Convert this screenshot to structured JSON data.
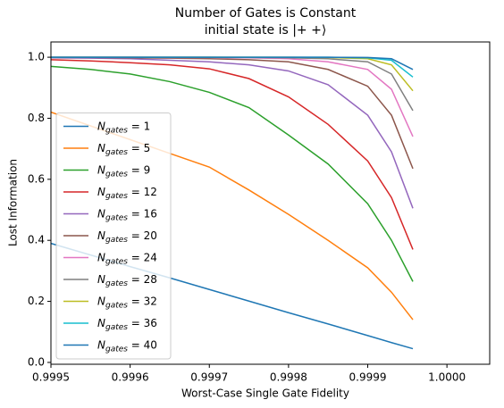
{
  "chart_data": {
    "type": "line",
    "title": "Number of Gates is Constant",
    "subtitle": "initial state is |+ +⟩",
    "x_label": "Worst-Case Single Gate Fidelity",
    "y_label": "Lost Information",
    "x": [
      0.9995,
      0.99955,
      0.9996,
      0.99965,
      0.9997,
      0.99975,
      0.9998,
      0.99985,
      0.9999,
      0.99993,
      0.999957
    ],
    "series": [
      {
        "name": "Ngates = 1",
        "color": "#1f77b4",
        "values": [
          0.39,
          0.352,
          0.314,
          0.277,
          0.239,
          0.201,
          0.163,
          0.126,
          0.088,
          0.065,
          0.045
        ]
      },
      {
        "name": "Ngates = 5",
        "color": "#ff7f0e",
        "values": [
          0.82,
          0.775,
          0.73,
          0.685,
          0.64,
          0.565,
          0.485,
          0.4,
          0.31,
          0.23,
          0.14
        ]
      },
      {
        "name": "Ngates = 9",
        "color": "#2ca02c",
        "values": [
          0.97,
          0.96,
          0.945,
          0.92,
          0.885,
          0.835,
          0.745,
          0.65,
          0.52,
          0.4,
          0.265
        ]
      },
      {
        "name": "Ngates = 12",
        "color": "#d62728",
        "values": [
          0.992,
          0.988,
          0.982,
          0.975,
          0.962,
          0.93,
          0.87,
          0.78,
          0.66,
          0.54,
          0.37
        ]
      },
      {
        "name": "Ngates = 16",
        "color": "#9467bd",
        "values": [
          0.998,
          0.997,
          0.995,
          0.99,
          0.985,
          0.975,
          0.955,
          0.91,
          0.81,
          0.69,
          0.505
        ]
      },
      {
        "name": "Ngates = 20",
        "color": "#8c564b",
        "values": [
          0.999,
          0.999,
          0.998,
          0.997,
          0.995,
          0.992,
          0.985,
          0.96,
          0.905,
          0.81,
          0.635
        ]
      },
      {
        "name": "Ngates = 24",
        "color": "#e377c2",
        "values": [
          1,
          1,
          1,
          0.999,
          0.999,
          0.998,
          0.995,
          0.985,
          0.96,
          0.895,
          0.74
        ]
      },
      {
        "name": "Ngates = 28",
        "color": "#7f7f7f",
        "values": [
          1,
          1,
          1,
          1,
          1,
          0.999,
          0.998,
          0.995,
          0.985,
          0.945,
          0.825
        ]
      },
      {
        "name": "Ngates = 32",
        "color": "#bcbd22",
        "values": [
          1,
          1,
          1,
          1,
          1,
          1,
          1,
          0.999,
          0.995,
          0.975,
          0.89
        ]
      },
      {
        "name": "Ngates = 36",
        "color": "#17becf",
        "values": [
          1,
          1,
          1,
          1,
          1,
          1,
          1,
          1,
          0.998,
          0.99,
          0.935
        ]
      },
      {
        "name": "Ngates = 40",
        "color": "#1f77b4",
        "values": [
          1,
          1,
          1,
          1,
          1,
          1,
          1,
          1,
          0.999,
          0.995,
          0.96
        ]
      }
    ],
    "xlim": [
      0.9995,
      1.000054
    ],
    "xticks": [
      0.9995,
      0.9996,
      0.9997,
      0.9998,
      0.9999,
      {
        "value": 1.0,
        "label": "1.0000"
      }
    ],
    "ylim": [
      -0.006,
      1.05
    ],
    "yticks": [
      {
        "value": 0,
        "label": "0.0"
      },
      0.2,
      0.4,
      0.6,
      0.8,
      {
        "value": 1,
        "label": "1.0"
      }
    ],
    "legend": "lower left"
  }
}
